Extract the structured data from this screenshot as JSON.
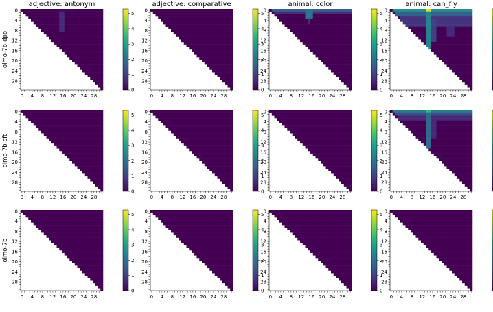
{
  "chart_data": {
    "type": "heatmap",
    "grid_size": 32,
    "mask": "upper-triangular",
    "columns": [
      "adjective: antonym",
      "adjective: comparative",
      "animal: color",
      "animal: can_fly"
    ],
    "rows": [
      "olmo-7b-dpo",
      "olmo-7b-sft",
      "olmo-7b"
    ],
    "x_ticks": [
      "0",
      "4",
      "8",
      "12",
      "16",
      "20",
      "24",
      "28"
    ],
    "y_ticks": [
      "0",
      "4",
      "8",
      "12",
      "16",
      "20",
      "24",
      "28"
    ],
    "colorbar": {
      "range": [
        0,
        5.3
      ],
      "ticks": [
        "0",
        "1",
        "2",
        "3",
        "4",
        "5"
      ],
      "colormap": "viridis",
      "low_color": "#440154",
      "high_color": "#fde725"
    },
    "panels": [
      {
        "row": 0,
        "col": 0,
        "hotspots": [
          {
            "i": [
              1,
              8
            ],
            "j": [
              15,
              16
            ],
            "v": 0.6
          }
        ]
      },
      {
        "row": 0,
        "col": 1,
        "hotspots": []
      },
      {
        "row": 0,
        "col": 2,
        "hotspots": [
          {
            "i": [
              0,
              0
            ],
            "j": [
              1,
              31
            ],
            "v": 1.6
          },
          {
            "i": [
              1,
              1
            ],
            "j": [
              2,
              31
            ],
            "v": 0.7
          },
          {
            "i": [
              0,
              3
            ],
            "j": [
              14,
              16
            ],
            "v": 2.0
          },
          {
            "i": [
              2,
              5
            ],
            "j": [
              15,
              15
            ],
            "v": 0.6
          }
        ]
      },
      {
        "row": 0,
        "col": 3,
        "hotspots": [
          {
            "i": [
              0,
              0
            ],
            "j": [
              1,
              31
            ],
            "v": 2.6
          },
          {
            "i": [
              0,
              0
            ],
            "j": [
              14,
              15
            ],
            "v": 5.0
          },
          {
            "i": [
              1,
              2
            ],
            "j": [
              2,
              31
            ],
            "v": 1.6
          },
          {
            "i": [
              3,
              6
            ],
            "j": [
              4,
              31
            ],
            "v": 0.8
          },
          {
            "i": [
              0,
              16
            ],
            "j": [
              14,
              15
            ],
            "v": 2.4
          },
          {
            "i": [
              4,
              12
            ],
            "j": [
              16,
              17
            ],
            "v": 1.0
          },
          {
            "i": [
              4,
              10
            ],
            "j": [
              22,
              24
            ],
            "v": 0.6
          }
        ]
      },
      {
        "row": 1,
        "col": 0,
        "hotspots": []
      },
      {
        "row": 1,
        "col": 1,
        "hotspots": []
      },
      {
        "row": 1,
        "col": 2,
        "hotspots": []
      },
      {
        "row": 1,
        "col": 3,
        "hotspots": [
          {
            "i": [
              0,
              0
            ],
            "j": [
              1,
              31
            ],
            "v": 2.2
          },
          {
            "i": [
              0,
              0
            ],
            "j": [
              14,
              15
            ],
            "v": 3.5
          },
          {
            "i": [
              1,
              1
            ],
            "j": [
              2,
              31
            ],
            "v": 1.3
          },
          {
            "i": [
              2,
              3
            ],
            "j": [
              3,
              31
            ],
            "v": 0.6
          },
          {
            "i": [
              0,
              14
            ],
            "j": [
              14,
              15
            ],
            "v": 1.8
          },
          {
            "i": [
              4,
              10
            ],
            "j": [
              16,
              17
            ],
            "v": 0.6
          }
        ]
      },
      {
        "row": 2,
        "col": 0,
        "hotspots": []
      },
      {
        "row": 2,
        "col": 1,
        "hotspots": []
      },
      {
        "row": 2,
        "col": 2,
        "hotspots": []
      },
      {
        "row": 2,
        "col": 3,
        "hotspots": []
      }
    ]
  }
}
